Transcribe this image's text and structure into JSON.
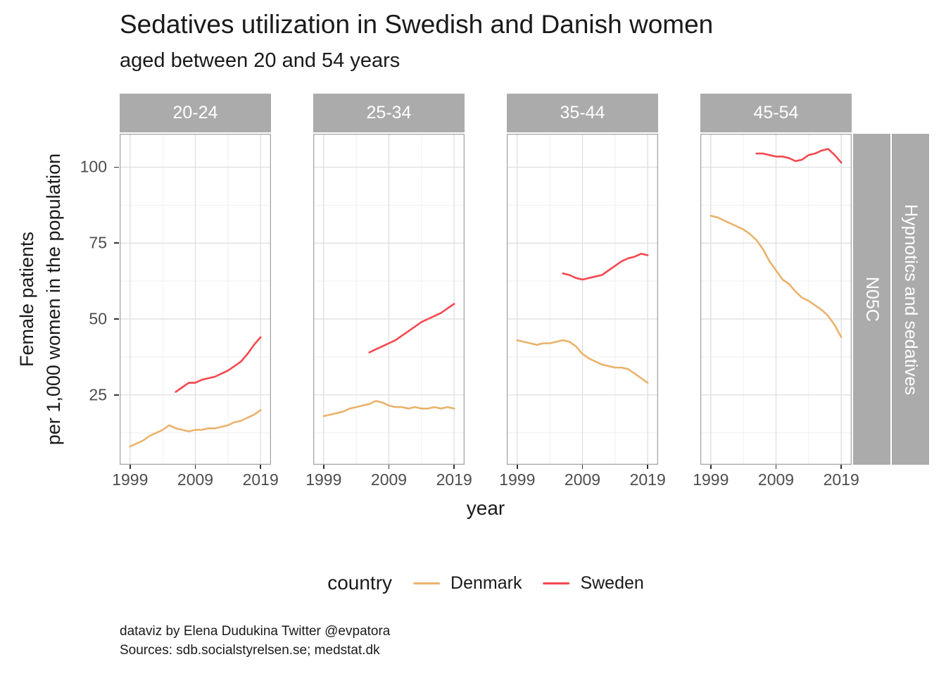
{
  "caption": {
    "line1": "dataviz by Elena Dudukina Twitter @evpatora",
    "line2": "Sources: sdb.socialstyrelsen.se; medstat.dk"
  },
  "chart_data": {
    "type": "line",
    "title": "Sedatives utilization in Swedish and Danish women",
    "subtitle": "aged between 20 and 54 years",
    "xlabel": "year",
    "ylabel": "Female patients\nper 1,000 women in the population",
    "legend_title": "country",
    "legend_position": "bottom",
    "grid": "on",
    "series_names": [
      "Denmark",
      "Sweden"
    ],
    "series_colors": {
      "Denmark": "#EBB26B",
      "Sweden": "#F5484F"
    },
    "facet_row_labels": [
      "N05C",
      "Hypnotics and sedatives"
    ],
    "x_ticks": [
      "1999",
      "2009",
      "2019"
    ],
    "x_major": [
      1999,
      2009,
      2019
    ],
    "x_minor": [
      2004,
      2014
    ],
    "y_ticks": [
      "100",
      "75",
      "50",
      "25"
    ],
    "y_major": [
      100,
      75,
      50,
      25
    ],
    "y_minor": [
      12.5,
      37.5,
      62.5,
      87.5
    ],
    "xlim": [
      1997.4,
      2020.6
    ],
    "ylim": [
      2,
      111
    ],
    "facets": [
      {
        "label": "20-24",
        "series": [
          {
            "name": "Denmark",
            "x": [
              1999,
              2000,
              2001,
              2002,
              2003,
              2004,
              2005,
              2006,
              2007,
              2008,
              2009,
              2010,
              2011,
              2012,
              2013,
              2014,
              2015,
              2016,
              2017,
              2018,
              2019
            ],
            "y": [
              8,
              9,
              10,
              11.5,
              12.5,
              13.5,
              15,
              14,
              13.5,
              13,
              13.5,
              13.5,
              14,
              14,
              14.5,
              15,
              16,
              16.5,
              17.5,
              18.5,
              20
            ]
          },
          {
            "name": "Sweden",
            "x": [
              2006,
              2007,
              2008,
              2009,
              2010,
              2011,
              2012,
              2013,
              2014,
              2015,
              2016,
              2017,
              2018,
              2019
            ],
            "y": [
              26,
              27.5,
              29,
              29,
              30,
              30.5,
              31,
              32,
              33,
              34.5,
              36,
              38.5,
              41.5,
              44
            ]
          }
        ]
      },
      {
        "label": "25-34",
        "series": [
          {
            "name": "Denmark",
            "x": [
              1999,
              2000,
              2001,
              2002,
              2003,
              2004,
              2005,
              2006,
              2007,
              2008,
              2009,
              2010,
              2011,
              2012,
              2013,
              2014,
              2015,
              2016,
              2017,
              2018,
              2019
            ],
            "y": [
              18,
              18.5,
              19,
              19.5,
              20.5,
              21,
              21.5,
              22,
              23,
              22.5,
              21.5,
              21,
              21,
              20.5,
              21,
              20.5,
              20.5,
              21,
              20.5,
              21,
              20.5
            ]
          },
          {
            "name": "Sweden",
            "x": [
              2006,
              2007,
              2008,
              2009,
              2010,
              2011,
              2012,
              2013,
              2014,
              2015,
              2016,
              2017,
              2018,
              2019
            ],
            "y": [
              39,
              40,
              41,
              42,
              43,
              44.5,
              46,
              47.5,
              49,
              50,
              51,
              52,
              53.5,
              55
            ]
          }
        ]
      },
      {
        "label": "35-44",
        "series": [
          {
            "name": "Denmark",
            "x": [
              1999,
              2000,
              2001,
              2002,
              2003,
              2004,
              2005,
              2006,
              2007,
              2008,
              2009,
              2010,
              2011,
              2012,
              2013,
              2014,
              2015,
              2016,
              2017,
              2018,
              2019
            ],
            "y": [
              43,
              42.5,
              42,
              41.5,
              42,
              42,
              42.5,
              43,
              42.5,
              41,
              38.5,
              37,
              36,
              35,
              34.5,
              34,
              34,
              33.5,
              32,
              30.5,
              29
            ]
          },
          {
            "name": "Sweden",
            "x": [
              2006,
              2007,
              2008,
              2009,
              2010,
              2011,
              2012,
              2013,
              2014,
              2015,
              2016,
              2017,
              2018,
              2019
            ],
            "y": [
              65,
              64.5,
              63.5,
              63,
              63.5,
              64,
              64.5,
              66,
              67.5,
              69,
              70,
              70.5,
              71.5,
              71
            ]
          }
        ]
      },
      {
        "label": "45-54",
        "series": [
          {
            "name": "Denmark",
            "x": [
              1999,
              2000,
              2001,
              2002,
              2003,
              2004,
              2005,
              2006,
              2007,
              2008,
              2009,
              2010,
              2011,
              2012,
              2013,
              2014,
              2015,
              2016,
              2017,
              2018,
              2019
            ],
            "y": [
              84,
              83.5,
              82.5,
              81.5,
              80.5,
              79.5,
              78,
              76,
              73,
              69,
              66,
              63,
              61.5,
              59,
              57,
              56,
              54.5,
              53,
              51,
              48,
              44
            ]
          },
          {
            "name": "Sweden",
            "x": [
              2006,
              2007,
              2008,
              2009,
              2010,
              2011,
              2012,
              2013,
              2014,
              2015,
              2016,
              2017,
              2018,
              2019
            ],
            "y": [
              104.5,
              104.5,
              104,
              103.5,
              103.5,
              103,
              102,
              102.5,
              104,
              104.5,
              105.5,
              106,
              104,
              101.5
            ]
          }
        ]
      }
    ]
  }
}
